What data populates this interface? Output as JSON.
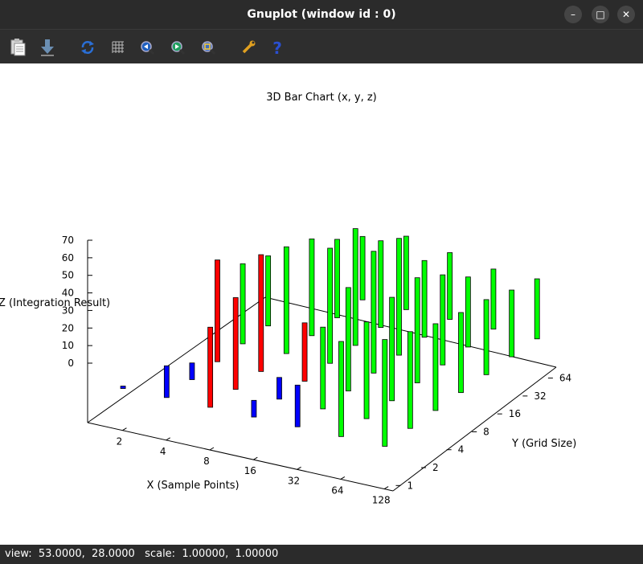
{
  "window": {
    "title": "Gnuplot (window id : 0)",
    "controls": {
      "minimize": "–",
      "maximize": "□",
      "close": "✕"
    }
  },
  "toolbar": {
    "buttons": [
      {
        "name": "copy-clipboard",
        "icon": "clipboard-icon"
      },
      {
        "name": "export",
        "icon": "download-arrow-icon"
      },
      {
        "name": "replot",
        "icon": "refresh-icon"
      },
      {
        "name": "grid",
        "icon": "grid-icon"
      },
      {
        "name": "previous-zoom",
        "icon": "zoom-previous-icon"
      },
      {
        "name": "next-zoom",
        "icon": "zoom-next-icon"
      },
      {
        "name": "autoscale",
        "icon": "zoom-fit-icon"
      },
      {
        "name": "options",
        "icon": "wrench-icon"
      },
      {
        "name": "help",
        "icon": "help-icon"
      }
    ]
  },
  "status": {
    "text": "view:  53.0000,  28.0000   scale:  1.00000,  1.00000"
  },
  "chart_data": {
    "type": "bar",
    "title": "3D Bar Chart (x, y, z)",
    "xlabel": "X (Sample Points)",
    "ylabel": "Y (Grid Size)",
    "zlabel": "Z (Integration Result)",
    "x_ticks": [
      "2",
      "4",
      "8",
      "16",
      "32",
      "64",
      "128"
    ],
    "y_ticks": [
      "1",
      "2",
      "4",
      "8",
      "16",
      "32",
      "64"
    ],
    "z_ticks": [
      "0",
      "10",
      "20",
      "30",
      "40",
      "50",
      "60",
      "70"
    ],
    "zlim": [
      0,
      70
    ],
    "view": [
      53,
      28
    ],
    "colors": {
      "low": "#0000ff",
      "mid": "#ff0000",
      "high": "#00ff00",
      "outline": "#000000"
    },
    "bars": [
      {
        "x": "2",
        "y": "1",
        "z": 1,
        "color": "low"
      },
      {
        "x": "4",
        "y": "1",
        "z": 19,
        "color": "low"
      },
      {
        "x": "4",
        "y": "2",
        "z": 10,
        "color": "low"
      },
      {
        "x": "4",
        "y": "4",
        "z": 61,
        "color": "mid"
      },
      {
        "x": "8",
        "y": "1",
        "z": 48,
        "color": "mid"
      },
      {
        "x": "8",
        "y": "2",
        "z": 55,
        "color": "mid"
      },
      {
        "x": "8",
        "y": "4",
        "z": 70,
        "color": "mid"
      },
      {
        "x": "8",
        "y": "8",
        "z": 64,
        "color": "high"
      },
      {
        "x": "16",
        "y": "1",
        "z": 10,
        "color": "low"
      },
      {
        "x": "16",
        "y": "2",
        "z": 13,
        "color": "low"
      },
      {
        "x": "16",
        "y": "4",
        "z": 35,
        "color": "mid"
      },
      {
        "x": "16",
        "y": "8",
        "z": 69,
        "color": "high"
      },
      {
        "x": "16",
        "y": "16",
        "z": 70,
        "color": "high"
      },
      {
        "x": "32",
        "y": "1",
        "z": 25,
        "color": "low"
      },
      {
        "x": "32",
        "y": "2",
        "z": 49,
        "color": "high"
      },
      {
        "x": "32",
        "y": "4",
        "z": 62,
        "color": "high"
      },
      {
        "x": "32",
        "y": "8",
        "z": 73,
        "color": "high"
      },
      {
        "x": "32",
        "y": "16",
        "z": 70,
        "color": "high"
      },
      {
        "x": "64",
        "y": "1",
        "z": 57,
        "color": "high"
      },
      {
        "x": "64",
        "y": "2",
        "z": 58,
        "color": "high"
      },
      {
        "x": "64",
        "y": "4",
        "z": 62,
        "color": "high"
      },
      {
        "x": "64",
        "y": "8",
        "z": 63,
        "color": "high"
      },
      {
        "x": "64",
        "y": "16",
        "z": 54,
        "color": "high"
      },
      {
        "x": "128",
        "y": "1",
        "z": 64,
        "color": "high"
      },
      {
        "x": "128",
        "y": "2",
        "z": 58,
        "color": "high"
      },
      {
        "x": "128",
        "y": "4",
        "z": 52,
        "color": "high"
      },
      {
        "x": "128",
        "y": "8",
        "z": 48,
        "color": "high"
      },
      {
        "x": "128",
        "y": "16",
        "z": 45,
        "color": "high"
      },
      {
        "x": "8",
        "y": "16",
        "z": 58,
        "color": "high"
      },
      {
        "x": "16",
        "y": "32",
        "z": 52,
        "color": "high"
      },
      {
        "x": "32",
        "y": "32",
        "z": 46,
        "color": "high"
      },
      {
        "x": "64",
        "y": "32",
        "z": 42,
        "color": "high"
      },
      {
        "x": "128",
        "y": "32",
        "z": 40,
        "color": "high"
      },
      {
        "x": "8",
        "y": "32",
        "z": 47,
        "color": "high"
      },
      {
        "x": "16",
        "y": "64",
        "z": 44,
        "color": "high"
      },
      {
        "x": "32",
        "y": "64",
        "z": 40,
        "color": "high"
      },
      {
        "x": "64",
        "y": "64",
        "z": 36,
        "color": "high"
      },
      {
        "x": "128",
        "y": "64",
        "z": 36,
        "color": "high"
      },
      {
        "x": "8",
        "y": "64",
        "z": 38,
        "color": "high"
      },
      {
        "x": "4",
        "y": "8",
        "z": 48,
        "color": "high"
      },
      {
        "x": "4",
        "y": "16",
        "z": 42,
        "color": "high"
      }
    ]
  }
}
